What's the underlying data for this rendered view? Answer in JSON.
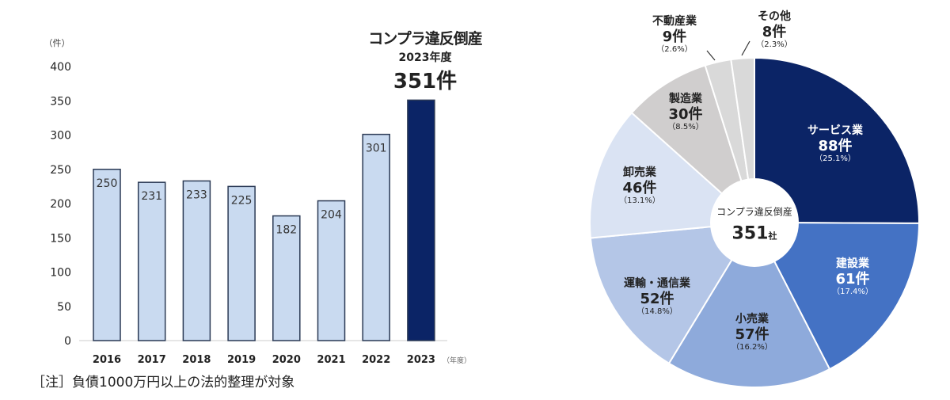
{
  "chart_data": [
    {
      "type": "bar",
      "title": "コンプラ違反倒産",
      "callout": {
        "year_label": "2023年度",
        "value_label": "351件"
      },
      "ylabel": "（件）",
      "xlabel": "（年度）",
      "categories": [
        "2016",
        "2017",
        "2018",
        "2019",
        "2020",
        "2021",
        "2022",
        "2023"
      ],
      "values": [
        250,
        231,
        233,
        225,
        182,
        204,
        301,
        351
      ],
      "data_labels": [
        "250",
        "231",
        "233",
        "225",
        "182",
        "204",
        "301",
        ""
      ],
      "ylim": [
        0,
        400
      ],
      "yticks": [
        "0",
        "50",
        "100",
        "150",
        "200",
        "250",
        "300",
        "350",
        "400"
      ],
      "colors": {
        "default": "#c9daf0",
        "highlight": "#0b2466",
        "border": "#2b3a55"
      },
      "note": "［注］負債1000万円以上の法的整理が対象"
    },
    {
      "type": "pie",
      "center_label": "コンプラ違反倒産",
      "center_value": "351",
      "center_unit": "社",
      "slices": [
        {
          "name": "サービス業",
          "count": "88件",
          "percent": "（25.1%）",
          "value": 88,
          "color": "#0b2466"
        },
        {
          "name": "建設業",
          "count": "61件",
          "percent": "（17.4%）",
          "value": 61,
          "color": "#4472c4"
        },
        {
          "name": "小売業",
          "count": "57件",
          "percent": "（16.2%）",
          "value": 57,
          "color": "#8eaadb"
        },
        {
          "name": "運輸・通信業",
          "count": "52件",
          "percent": "（14.8%）",
          "value": 52,
          "color": "#b4c6e7"
        },
        {
          "name": "卸売業",
          "count": "46件",
          "percent": "（13.1%）",
          "value": 46,
          "color": "#dae3f3"
        },
        {
          "name": "製造業",
          "count": "30件",
          "percent": "（8.5%）",
          "value": 30,
          "color": "#d0cece"
        },
        {
          "name": "不動産業",
          "count": "9件",
          "percent": "（2.6%）",
          "value": 9,
          "color": "#d9d9d9"
        },
        {
          "name": "その他",
          "count": "8件",
          "percent": "（2.3%）",
          "value": 8,
          "color": "#d9d9d9"
        }
      ]
    }
  ]
}
